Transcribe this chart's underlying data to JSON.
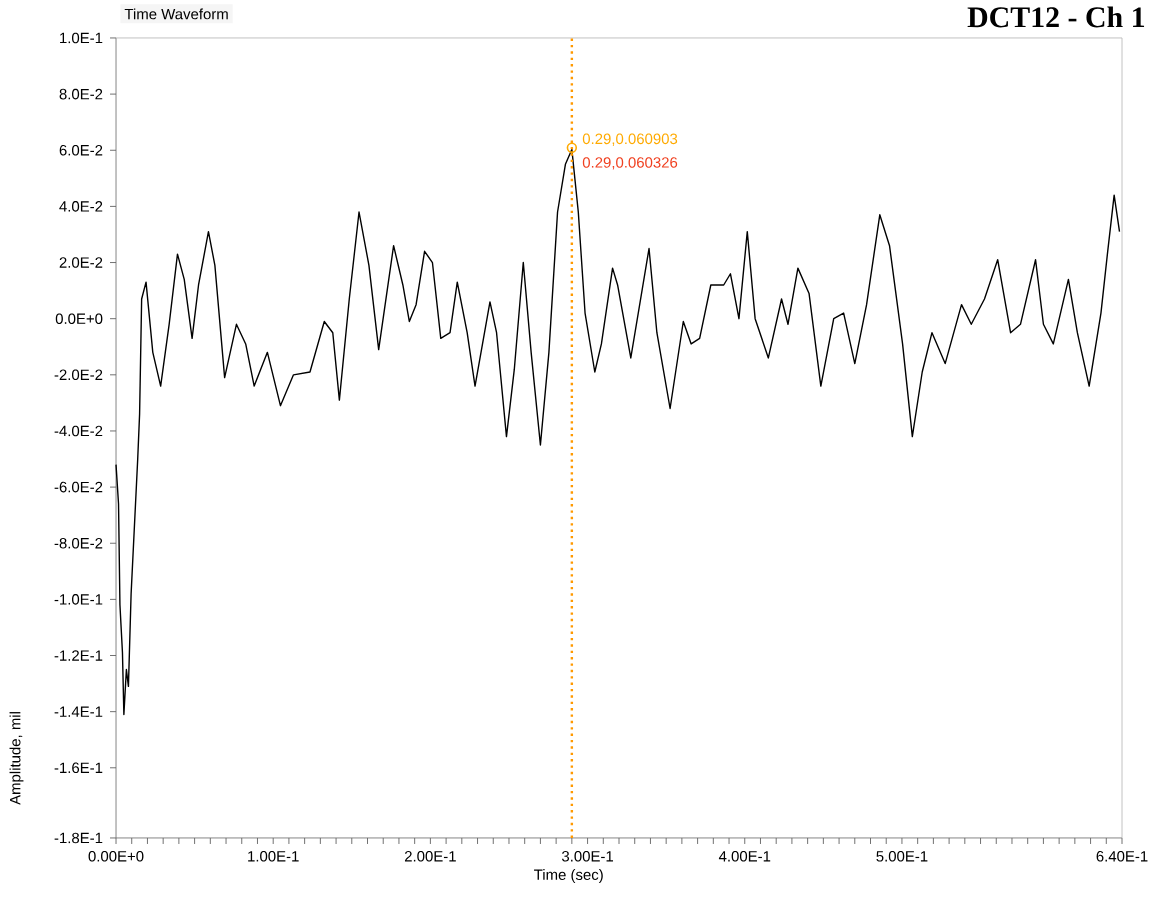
{
  "chart_data": {
    "type": "line",
    "title": "DCT12 - Ch 1",
    "subtitle": "Time Waveform",
    "xlabel": "Time (sec)",
    "ylabel": "Amplitude, mil",
    "xlim": [
      0,
      0.64
    ],
    "ylim": [
      -0.185,
      0.1
    ],
    "xticks": [
      {
        "value": 0,
        "label": "0.00E+0"
      },
      {
        "value": 0.1,
        "label": "1.00E-1"
      },
      {
        "value": 0.2,
        "label": "2.00E-1"
      },
      {
        "value": 0.3,
        "label": "3.00E-1"
      },
      {
        "value": 0.4,
        "label": "4.00E-1"
      },
      {
        "value": 0.5,
        "label": "5.00E-1"
      },
      {
        "value": 0.64,
        "label": "6.40E-1"
      },
      {
        "value": 0.01,
        "label": null
      },
      {
        "value": 0.02,
        "label": null
      },
      {
        "value": 0.03,
        "label": null
      },
      {
        "value": 0.04,
        "label": null
      },
      {
        "value": 0.05,
        "label": null
      },
      {
        "value": 0.06,
        "label": null
      },
      {
        "value": 0.07,
        "label": null
      },
      {
        "value": 0.08,
        "label": null
      },
      {
        "value": 0.09,
        "label": null
      },
      {
        "value": 0.11,
        "label": null
      },
      {
        "value": 0.12,
        "label": null
      },
      {
        "value": 0.13,
        "label": null
      },
      {
        "value": 0.14,
        "label": null
      },
      {
        "value": 0.15,
        "label": null
      },
      {
        "value": 0.16,
        "label": null
      },
      {
        "value": 0.17,
        "label": null
      },
      {
        "value": 0.18,
        "label": null
      },
      {
        "value": 0.19,
        "label": null
      },
      {
        "value": 0.21,
        "label": null
      },
      {
        "value": 0.22,
        "label": null
      },
      {
        "value": 0.23,
        "label": null
      },
      {
        "value": 0.24,
        "label": null
      },
      {
        "value": 0.25,
        "label": null
      },
      {
        "value": 0.26,
        "label": null
      },
      {
        "value": 0.27,
        "label": null
      },
      {
        "value": 0.28,
        "label": null
      },
      {
        "value": 0.29,
        "label": null
      },
      {
        "value": 0.31,
        "label": null
      },
      {
        "value": 0.32,
        "label": null
      },
      {
        "value": 0.33,
        "label": null
      },
      {
        "value": 0.34,
        "label": null
      },
      {
        "value": 0.35,
        "label": null
      },
      {
        "value": 0.36,
        "label": null
      },
      {
        "value": 0.37,
        "label": null
      },
      {
        "value": 0.38,
        "label": null
      },
      {
        "value": 0.39,
        "label": null
      },
      {
        "value": 0.41,
        "label": null
      },
      {
        "value": 0.42,
        "label": null
      },
      {
        "value": 0.43,
        "label": null
      },
      {
        "value": 0.44,
        "label": null
      },
      {
        "value": 0.45,
        "label": null
      },
      {
        "value": 0.46,
        "label": null
      },
      {
        "value": 0.47,
        "label": null
      },
      {
        "value": 0.48,
        "label": null
      },
      {
        "value": 0.49,
        "label": null
      },
      {
        "value": 0.51,
        "label": null
      },
      {
        "value": 0.52,
        "label": null
      },
      {
        "value": 0.53,
        "label": null
      },
      {
        "value": 0.54,
        "label": null
      },
      {
        "value": 0.55,
        "label": null
      },
      {
        "value": 0.56,
        "label": null
      },
      {
        "value": 0.57,
        "label": null
      },
      {
        "value": 0.58,
        "label": null
      },
      {
        "value": 0.59,
        "label": null
      },
      {
        "value": 0.6,
        "label": null
      },
      {
        "value": 0.61,
        "label": null
      },
      {
        "value": 0.62,
        "label": null
      },
      {
        "value": 0.63,
        "label": null
      }
    ],
    "yticks": [
      {
        "value": 0.1,
        "label": "1.0E-1"
      },
      {
        "value": 0.08,
        "label": "8.0E-2"
      },
      {
        "value": 0.06,
        "label": "6.0E-2"
      },
      {
        "value": 0.04,
        "label": "4.0E-2"
      },
      {
        "value": 0.02,
        "label": "2.0E-2"
      },
      {
        "value": 0,
        "label": "0.0E+0"
      },
      {
        "value": -0.02,
        "label": "-2.0E-2"
      },
      {
        "value": -0.04,
        "label": "-4.0E-2"
      },
      {
        "value": -0.06,
        "label": "-6.0E-2"
      },
      {
        "value": -0.08,
        "label": "-8.0E-2"
      },
      {
        "value": -0.1,
        "label": "-1.0E-1"
      },
      {
        "value": -0.12,
        "label": "-1.2E-1"
      },
      {
        "value": -0.14,
        "label": "-1.4E-1"
      },
      {
        "value": -0.16,
        "label": "-1.6E-1"
      },
      {
        "value": -0.185,
        "label": "-1.8E-1"
      }
    ],
    "grid": false,
    "marker": "none",
    "line_style": "solid",
    "ref_lines": [
      {
        "axis": "x",
        "value": 0.29,
        "color": "#ff9900",
        "line_style": "dotted"
      }
    ],
    "annotations": [
      {
        "text": "0.29,0.060903",
        "x": 0.29,
        "y": 0.060903
      },
      {
        "text": "0.29,0.060326",
        "x": 0.29,
        "y": 0.060326
      }
    ],
    "series": [
      {
        "color": "#000000",
        "x": [
          0.0,
          0.0016,
          0.0025,
          0.0041,
          0.005,
          0.0066,
          0.0079,
          0.0096,
          0.0138,
          0.015,
          0.0163,
          0.0191,
          0.0234,
          0.0284,
          0.0338,
          0.0391,
          0.0434,
          0.0484,
          0.0525,
          0.0588,
          0.0629,
          0.0691,
          0.0766,
          0.0825,
          0.0879,
          0.0963,
          0.1046,
          0.1129,
          0.1234,
          0.1325,
          0.1379,
          0.1421,
          0.1484,
          0.1546,
          0.1609,
          0.1671,
          0.1766,
          0.1825,
          0.1866,
          0.1909,
          0.1963,
          0.2013,
          0.2066,
          0.2125,
          0.2171,
          0.2234,
          0.2284,
          0.2379,
          0.2421,
          0.2484,
          0.2534,
          0.2591,
          0.2641,
          0.27,
          0.2754,
          0.2809,
          0.2859,
          0.29,
          0.2941,
          0.2984,
          0.3046,
          0.3088,
          0.3159,
          0.3191,
          0.3275,
          0.3391,
          0.3441,
          0.3525,
          0.3609,
          0.3659,
          0.3713,
          0.3784,
          0.3866,
          0.3909,
          0.3963,
          0.4016,
          0.4066,
          0.415,
          0.4234,
          0.4275,
          0.4338,
          0.4409,
          0.4484,
          0.4566,
          0.4629,
          0.47,
          0.4775,
          0.4859,
          0.4921,
          0.5004,
          0.5066,
          0.5129,
          0.5191,
          0.5275,
          0.5379,
          0.5441,
          0.5525,
          0.5609,
          0.5691,
          0.5754,
          0.585,
          0.59,
          0.5963,
          0.6059,
          0.6116,
          0.6191,
          0.6266,
          0.6309,
          0.635,
          0.6384
        ],
        "values": [
          -0.052,
          -0.066,
          -0.102,
          -0.119,
          -0.141,
          -0.125,
          -0.131,
          -0.098,
          -0.05,
          -0.034,
          0.007,
          0.013,
          -0.012,
          -0.024,
          -0.002,
          0.023,
          0.014,
          -0.007,
          0.012,
          0.031,
          0.019,
          -0.021,
          -0.002,
          -0.009,
          -0.024,
          -0.012,
          -0.031,
          -0.02,
          -0.019,
          -0.001,
          -0.005,
          -0.029,
          0.007,
          0.038,
          0.019,
          -0.011,
          0.026,
          0.012,
          -0.001,
          0.005,
          0.024,
          0.02,
          -0.007,
          -0.005,
          0.013,
          -0.005,
          -0.024,
          0.006,
          -0.005,
          -0.042,
          -0.018,
          0.02,
          -0.012,
          -0.045,
          -0.012,
          0.038,
          0.055,
          0.0603,
          0.038,
          0.002,
          -0.019,
          -0.009,
          0.018,
          0.012,
          -0.014,
          0.025,
          -0.005,
          -0.032,
          -0.001,
          -0.009,
          -0.007,
          0.012,
          0.012,
          0.016,
          0,
          0.031,
          0,
          -0.014,
          0.007,
          -0.002,
          0.018,
          0.009,
          -0.024,
          0,
          0.002,
          -0.016,
          0.005,
          0.037,
          0.026,
          -0.009,
          -0.042,
          -0.019,
          -0.005,
          -0.016,
          0.005,
          -0.002,
          0.007,
          0.021,
          -0.005,
          -0.002,
          0.021,
          -0.002,
          -0.009,
          0.014,
          -0.005,
          -0.024,
          0.002,
          0.024,
          0.044,
          0.031
        ]
      }
    ]
  }
}
